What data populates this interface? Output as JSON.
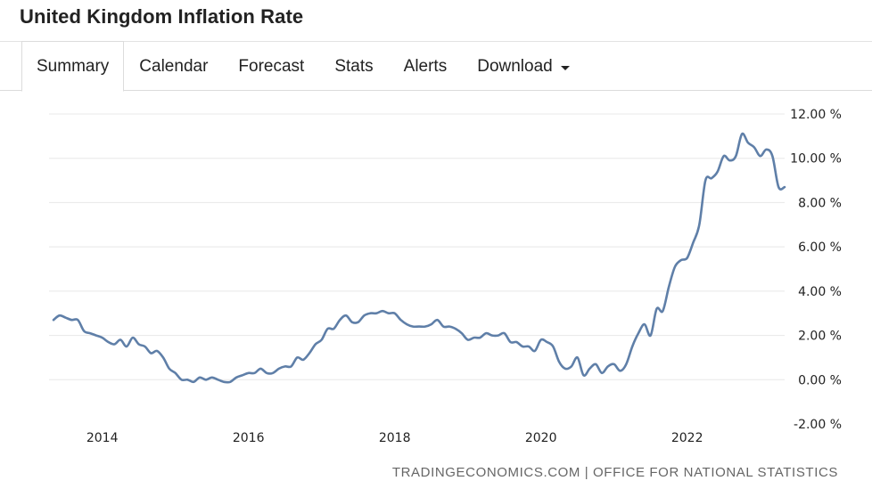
{
  "page": {
    "title": "United Kingdom Inflation Rate"
  },
  "tabs": [
    {
      "label": "Summary",
      "active": true
    },
    {
      "label": "Calendar",
      "active": false
    },
    {
      "label": "Forecast",
      "active": false
    },
    {
      "label": "Stats",
      "active": false
    },
    {
      "label": "Alerts",
      "active": false
    },
    {
      "label": "Download",
      "active": false,
      "dropdown": true
    }
  ],
  "source": "TRADINGECONOMICS.COM | OFFICE FOR NATIONAL STATISTICS",
  "chart_data": {
    "type": "line",
    "title": "",
    "xlabel": "",
    "ylabel": "",
    "grid": true,
    "line_color": "#5f7fa8",
    "ylim": [
      -2,
      12
    ],
    "xlim": [
      "2013-05",
      "2023-05"
    ],
    "yticks": [
      {
        "value": 12,
        "label": "12.00 %"
      },
      {
        "value": 10,
        "label": "10.00 %"
      },
      {
        "value": 8,
        "label": "8.00 %"
      },
      {
        "value": 6,
        "label": "6.00 %"
      },
      {
        "value": 4,
        "label": "4.00 %"
      },
      {
        "value": 2,
        "label": "2.00 %"
      },
      {
        "value": 0,
        "label": "0.00 %"
      },
      {
        "value": -2,
        "label": "-2.00 %"
      }
    ],
    "xticks": [
      {
        "value": "2014-01",
        "label": "2014"
      },
      {
        "value": "2016-01",
        "label": "2016"
      },
      {
        "value": "2018-01",
        "label": "2018"
      },
      {
        "value": "2020-01",
        "label": "2020"
      },
      {
        "value": "2022-01",
        "label": "2022"
      }
    ],
    "series": [
      {
        "x": [
          "2013-05",
          "2013-06",
          "2013-07",
          "2013-08",
          "2013-09",
          "2013-10",
          "2013-11",
          "2013-12",
          "2014-01",
          "2014-02",
          "2014-03",
          "2014-04",
          "2014-05",
          "2014-06",
          "2014-07",
          "2014-08",
          "2014-09",
          "2014-10",
          "2014-11",
          "2014-12",
          "2015-01",
          "2015-02",
          "2015-03",
          "2015-04",
          "2015-05",
          "2015-06",
          "2015-07",
          "2015-08",
          "2015-09",
          "2015-10",
          "2015-11",
          "2015-12",
          "2016-01",
          "2016-02",
          "2016-03",
          "2016-04",
          "2016-05",
          "2016-06",
          "2016-07",
          "2016-08",
          "2016-09",
          "2016-10",
          "2016-11",
          "2016-12",
          "2017-01",
          "2017-02",
          "2017-03",
          "2017-04",
          "2017-05",
          "2017-06",
          "2017-07",
          "2017-08",
          "2017-09",
          "2017-10",
          "2017-11",
          "2017-12",
          "2018-01",
          "2018-02",
          "2018-03",
          "2018-04",
          "2018-05",
          "2018-06",
          "2018-07",
          "2018-08",
          "2018-09",
          "2018-10",
          "2018-11",
          "2018-12",
          "2019-01",
          "2019-02",
          "2019-03",
          "2019-04",
          "2019-05",
          "2019-06",
          "2019-07",
          "2019-08",
          "2019-09",
          "2019-10",
          "2019-11",
          "2019-12",
          "2020-01",
          "2020-02",
          "2020-03",
          "2020-04",
          "2020-05",
          "2020-06",
          "2020-07",
          "2020-08",
          "2020-09",
          "2020-10",
          "2020-11",
          "2020-12",
          "2021-01",
          "2021-02",
          "2021-03",
          "2021-04",
          "2021-05",
          "2021-06",
          "2021-07",
          "2021-08",
          "2021-09",
          "2021-10",
          "2021-11",
          "2021-12",
          "2022-01",
          "2022-02",
          "2022-03",
          "2022-04",
          "2022-05",
          "2022-06",
          "2022-07",
          "2022-08",
          "2022-09",
          "2022-10",
          "2022-11",
          "2022-12",
          "2023-01",
          "2023-02",
          "2023-03",
          "2023-04",
          "2023-05"
        ],
        "values": [
          2.7,
          2.9,
          2.8,
          2.7,
          2.7,
          2.2,
          2.1,
          2.0,
          1.9,
          1.7,
          1.6,
          1.8,
          1.5,
          1.9,
          1.6,
          1.5,
          1.2,
          1.3,
          1.0,
          0.5,
          0.3,
          0.0,
          0.0,
          -0.1,
          0.1,
          0.0,
          0.1,
          0.0,
          -0.1,
          -0.1,
          0.1,
          0.2,
          0.3,
          0.3,
          0.5,
          0.3,
          0.3,
          0.5,
          0.6,
          0.6,
          1.0,
          0.9,
          1.2,
          1.6,
          1.8,
          2.3,
          2.3,
          2.7,
          2.9,
          2.6,
          2.6,
          2.9,
          3.0,
          3.0,
          3.1,
          3.0,
          3.0,
          2.7,
          2.5,
          2.4,
          2.4,
          2.4,
          2.5,
          2.7,
          2.4,
          2.4,
          2.3,
          2.1,
          1.8,
          1.9,
          1.9,
          2.1,
          2.0,
          2.0,
          2.1,
          1.7,
          1.7,
          1.5,
          1.5,
          1.3,
          1.8,
          1.7,
          1.5,
          0.8,
          0.5,
          0.6,
          1.0,
          0.2,
          0.5,
          0.7,
          0.3,
          0.6,
          0.7,
          0.4,
          0.7,
          1.5,
          2.1,
          2.5,
          2.0,
          3.2,
          3.1,
          4.2,
          5.1,
          5.4,
          5.5,
          6.2,
          7.0,
          9.0,
          9.1,
          9.4,
          10.1,
          9.9,
          10.1,
          11.1,
          10.7,
          10.5,
          10.1,
          10.4,
          10.1,
          8.7,
          8.7
        ]
      }
    ]
  }
}
